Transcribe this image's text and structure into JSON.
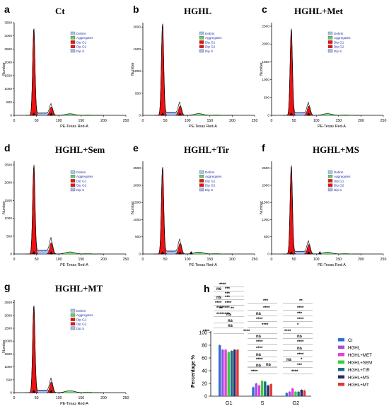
{
  "panels": [
    {
      "letter": "a",
      "title": "Ct",
      "ylabel": "Number",
      "xlabel": "PE-Texas Red-A",
      "yticks": [
        "0",
        "500",
        "1000",
        "1500",
        "2000",
        "2500",
        "3000",
        "3500"
      ],
      "ymax": 3500,
      "xticks": [
        "0",
        "50",
        "100",
        "150",
        "200",
        "250"
      ],
      "g1_height": 3250,
      "g2_height": 320,
      "s_height": 90
    },
    {
      "letter": "b",
      "title": "HGHL",
      "ylabel": "Number",
      "xlabel": "PE-Texas Red-A",
      "yticks": [
        "0",
        "500",
        "1000",
        "1500",
        "2000"
      ],
      "ymax": 2100,
      "xticks": [
        "0",
        "50",
        "100",
        "150",
        "200",
        "250"
      ],
      "g1_height": 2050,
      "g2_height": 210,
      "s_height": 70
    },
    {
      "letter": "c",
      "title": "HGHL+Met",
      "ylabel": "Number",
      "xlabel": "PE-Texas Red-A",
      "yticks": [
        "0",
        "500",
        "1000",
        "1500",
        "2000",
        "2500"
      ],
      "ymax": 2600,
      "xticks": [
        "0",
        "50",
        "100",
        "150",
        "200",
        "250"
      ],
      "g1_height": 2400,
      "g2_height": 260,
      "s_height": 80
    },
    {
      "letter": "d",
      "title": "HGHL+Sem",
      "ylabel": "Number",
      "xlabel": "PE-Texas Red-A",
      "yticks": [
        "0",
        "500",
        "1000",
        "1500",
        "2000",
        "2500"
      ],
      "ymax": 2600,
      "xticks": [
        "0",
        "50",
        "100",
        "150",
        "200",
        "250"
      ],
      "g1_height": 2450,
      "g2_height": 320,
      "s_height": 110
    },
    {
      "letter": "e",
      "title": "HGHL+Tir",
      "ylabel": "Number",
      "xlabel": "PE-Texas Red-A",
      "yticks": [
        "0",
        "500",
        "1000",
        "1500",
        "2000",
        "2500"
      ],
      "ymax": 2700,
      "xticks": [
        "0",
        "50",
        "100",
        "150",
        "200",
        "250"
      ],
      "g1_height": 2500,
      "g2_height": 310,
      "s_height": 90
    },
    {
      "letter": "f",
      "title": "HGHL+MS",
      "ylabel": "Number",
      "xlabel": "PE-Texas Red-A",
      "yticks": [
        "0",
        "500",
        "1000",
        "1500",
        "2000",
        "2500"
      ],
      "ymax": 2700,
      "xticks": [
        "0",
        "50",
        "100",
        "150",
        "200",
        "250"
      ],
      "g1_height": 2550,
      "g2_height": 280,
      "s_height": 80
    },
    {
      "letter": "g",
      "title": "HGHL+MT",
      "ylabel": "Number",
      "xlabel": "PE-Texas Red-A",
      "yticks": [
        "0",
        "500",
        "1000",
        "1500",
        "2000",
        "2500",
        "3000",
        "3500"
      ],
      "ymax": 3600,
      "xticks": [
        "0",
        "50",
        "100",
        "150",
        "200",
        "250"
      ],
      "g1_height": 3350,
      "g2_height": 420,
      "s_height": 100
    }
  ],
  "legend_items": [
    {
      "label": "Debris",
      "color": "#a8c8e8"
    },
    {
      "label": "Aggregates",
      "color": "#66cc66"
    },
    {
      "label": "Dip G1",
      "color": "#ee1111"
    },
    {
      "label": "Dip G2",
      "color": "#ee1111"
    },
    {
      "label": "Dip S",
      "color": "#aabbee"
    }
  ],
  "bar_panel": {
    "letter": "h",
    "ylabel": "Percentage %",
    "yticks": [
      "0",
      "20",
      "40",
      "60",
      "80",
      "100"
    ],
    "sig_labels": [
      "****",
      "***",
      "**",
      "*",
      "ns"
    ]
  },
  "chart_data": {
    "type": "bar",
    "categories": [
      "G1",
      "S",
      "G2"
    ],
    "ylabel": "Percentage %",
    "ylim": [
      0,
      100
    ],
    "series": [
      {
        "name": "Ct",
        "color": "#2f6fd0",
        "values": [
          80,
          14,
          5
        ]
      },
      {
        "name": "HGHL",
        "color": "#a050e0",
        "values": [
          73,
          20,
          7
        ]
      },
      {
        "name": "HGHL+MET",
        "color": "#e040e0",
        "values": [
          73,
          17,
          12
        ]
      },
      {
        "name": "HGHL+SEM",
        "color": "#3ccc3c",
        "values": [
          69,
          24,
          7
        ]
      },
      {
        "name": "HGHL+TIR",
        "color": "#1a6e8a",
        "values": [
          71,
          23,
          7
        ]
      },
      {
        "name": "HGHL+MS",
        "color": "#2a2a60",
        "values": [
          73,
          17,
          10
        ]
      },
      {
        "name": "HGHL+MT",
        "color": "#e03838",
        "values": [
          73,
          19,
          9
        ]
      }
    ]
  }
}
